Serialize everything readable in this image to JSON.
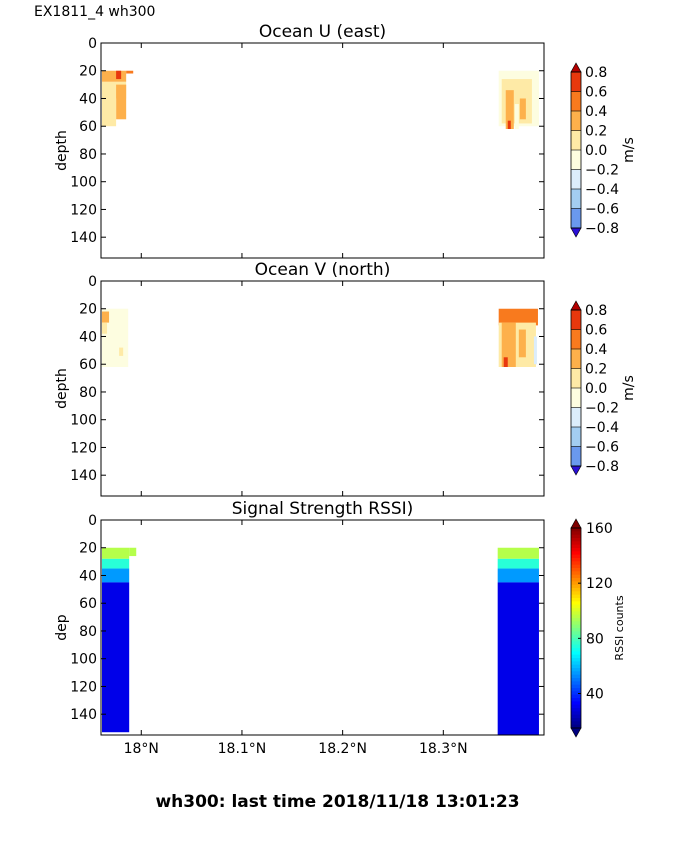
{
  "header": "EX1811_4 wh300",
  "footer": "wh300: last time 2018/11/18 13:01:23",
  "x_ticks": [
    {
      "value": 17.98,
      "label": "18°N"
    },
    {
      "value": 18.08,
      "label": "18.1°N"
    },
    {
      "value": 18.18,
      "label": "18.2°N"
    },
    {
      "value": 18.28,
      "label": "18.3°N"
    }
  ],
  "chart_data": [
    {
      "type": "heatmap",
      "title": "Ocean U (east)",
      "ylabel": "depth",
      "xlim": [
        17.94,
        18.38
      ],
      "ylim": [
        155,
        0
      ],
      "yticks": [
        0,
        20,
        40,
        60,
        80,
        100,
        120,
        140
      ],
      "colorbar": {
        "label": "m/s",
        "ticks": [
          "0.8",
          "0.6",
          "0.4",
          "0.2",
          "0.0",
          "−0.2",
          "−0.4",
          "−0.6",
          "−0.8"
        ],
        "colors": [
          "#b30000",
          "#e8380d",
          "#f87a1e",
          "#fdb04b",
          "#feeaa6",
          "#fdfde0",
          "#dcedfb",
          "#a3cdf1",
          "#6a99ee",
          "#3c5ae8",
          "#2a0fd6"
        ]
      },
      "cells": [
        {
          "x0": 17.941,
          "x1": 17.965,
          "y0": 20,
          "y1": 28,
          "value": 0.3
        },
        {
          "x0": 17.955,
          "x1": 17.96,
          "y0": 20,
          "y1": 26,
          "value": 0.7
        },
        {
          "x0": 17.965,
          "x1": 17.972,
          "y0": 20,
          "y1": 22,
          "value": 0.5
        },
        {
          "x0": 17.941,
          "x1": 17.965,
          "y0": 28,
          "y1": 40,
          "value": 0.1
        },
        {
          "x0": 17.955,
          "x1": 17.965,
          "y0": 30,
          "y1": 55,
          "value": 0.3
        },
        {
          "x0": 17.941,
          "x1": 17.955,
          "y0": 40,
          "y1": 60,
          "value": 0.05
        },
        {
          "x0": 18.335,
          "x1": 18.375,
          "y0": 20,
          "y1": 60,
          "value": -0.05
        },
        {
          "x0": 18.338,
          "x1": 18.368,
          "y0": 26,
          "y1": 58,
          "value": 0.05
        },
        {
          "x0": 18.342,
          "x1": 18.35,
          "y0": 34,
          "y1": 62,
          "value": 0.3
        },
        {
          "x0": 18.356,
          "x1": 18.362,
          "y0": 40,
          "y1": 55,
          "value": 0.3
        },
        {
          "x0": 18.351,
          "x1": 18.355,
          "y0": 44,
          "y1": 62,
          "value": -0.1
        },
        {
          "x0": 18.344,
          "x1": 18.347,
          "y0": 56,
          "y1": 62,
          "value": 0.7
        }
      ]
    },
    {
      "type": "heatmap",
      "title": "Ocean V (north)",
      "ylabel": "depth",
      "xlim": [
        17.94,
        18.38
      ],
      "ylim": [
        155,
        0
      ],
      "yticks": [
        0,
        20,
        40,
        60,
        80,
        100,
        120,
        140
      ],
      "colorbar": {
        "label": "m/s",
        "ticks": [
          "0.8",
          "0.6",
          "0.4",
          "0.2",
          "0.0",
          "−0.2",
          "−0.4",
          "−0.6",
          "−0.8"
        ],
        "colors": [
          "#b30000",
          "#e8380d",
          "#f87a1e",
          "#fdb04b",
          "#feeaa6",
          "#fdfde0",
          "#dcedfb",
          "#a3cdf1",
          "#6a99ee",
          "#3c5ae8",
          "#2a0fd6"
        ]
      },
      "cells": [
        {
          "x0": 17.941,
          "x1": 17.967,
          "y0": 20,
          "y1": 62,
          "value": -0.1
        },
        {
          "x0": 17.941,
          "x1": 17.948,
          "y0": 22,
          "y1": 30,
          "value": 0.3
        },
        {
          "x0": 17.941,
          "x1": 17.946,
          "y0": 30,
          "y1": 38,
          "value": 0.1
        },
        {
          "x0": 17.958,
          "x1": 17.962,
          "y0": 48,
          "y1": 54,
          "value": 0.1
        },
        {
          "x0": 18.335,
          "x1": 18.374,
          "y0": 20,
          "y1": 32,
          "value": 0.5
        },
        {
          "x0": 18.335,
          "x1": 18.372,
          "y0": 30,
          "y1": 62,
          "value": 0.05
        },
        {
          "x0": 18.338,
          "x1": 18.352,
          "y0": 30,
          "y1": 62,
          "value": 0.3
        },
        {
          "x0": 18.355,
          "x1": 18.362,
          "y0": 35,
          "y1": 55,
          "value": 0.3
        },
        {
          "x0": 18.34,
          "x1": 18.344,
          "y0": 55,
          "y1": 62,
          "value": 0.7
        },
        {
          "x0": 18.37,
          "x1": 18.373,
          "y0": 40,
          "y1": 60,
          "value": -0.3
        }
      ]
    },
    {
      "type": "heatmap",
      "title": "Signal Strength RSSI)",
      "ylabel": "dep",
      "xlim": [
        17.94,
        18.38
      ],
      "ylim": [
        155,
        0
      ],
      "yticks": [
        0,
        20,
        40,
        60,
        80,
        100,
        120,
        140
      ],
      "colorbar": {
        "label": "RSSI counts",
        "ticks": [
          "160",
          "120",
          "80",
          "40"
        ],
        "range": [
          15,
          160
        ],
        "colors": [
          "#00007f",
          "#0000ff",
          "#0080ff",
          "#00ffff",
          "#80ff80",
          "#ffff00",
          "#ff8000",
          "#ff0000",
          "#7f0000"
        ]
      },
      "columns": [
        {
          "x0": 17.941,
          "x1": 17.968,
          "bottom": 153,
          "bins": [
            [
              20,
              28,
              95
            ],
            [
              28,
              35,
              75
            ],
            [
              35,
              45,
              55
            ],
            [
              45,
              153,
              30
            ]
          ]
        },
        {
          "x0": 17.968,
          "x1": 17.975,
          "bottom": 26,
          "bins": [
            [
              20,
              26,
              95
            ]
          ]
        },
        {
          "x0": 18.334,
          "x1": 18.375,
          "bottom": 155,
          "bins": [
            [
              20,
              28,
              95
            ],
            [
              28,
              35,
              75
            ],
            [
              35,
              45,
              55
            ],
            [
              45,
              155,
              30
            ]
          ]
        }
      ]
    }
  ]
}
